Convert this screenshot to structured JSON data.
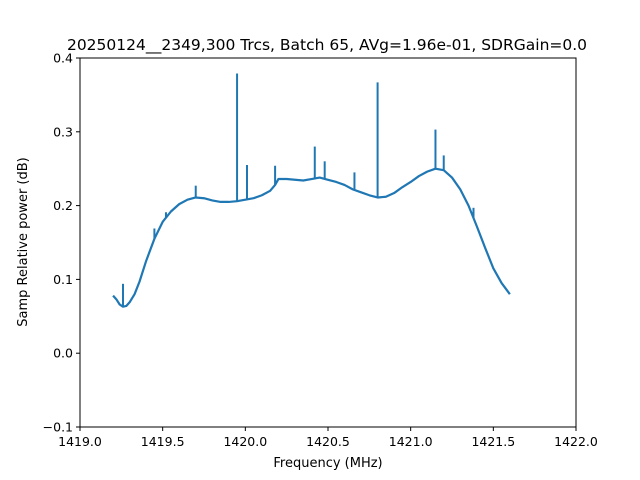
{
  "chart_data": {
    "type": "line",
    "title": "20250124__2349,300 Trcs, Batch 65, AVg=1.96e-01, SDRGain=0.0",
    "xlabel": "Frequency (MHz)",
    "ylabel": "Samp Relative power (dB)",
    "xlim": [
      1419.0,
      1422.0
    ],
    "ylim": [
      -0.1,
      0.4
    ],
    "xticks": [
      "1419.0",
      "1419.5",
      "1420.0",
      "1420.5",
      "1421.0",
      "1421.5",
      "1422.0"
    ],
    "yticks": [
      "−0.1",
      "0.0",
      "0.1",
      "0.2",
      "0.3",
      "0.4"
    ],
    "grid": false,
    "line_color": "#1f77b4",
    "series": [
      {
        "x": [
          1419.2,
          1419.22,
          1419.24,
          1419.26,
          1419.28,
          1419.3,
          1419.33,
          1419.36,
          1419.4,
          1419.45,
          1419.5,
          1419.55,
          1419.6,
          1419.65,
          1419.7,
          1419.75,
          1419.8,
          1419.85,
          1419.9,
          1419.95,
          1420.0,
          1420.05,
          1420.1,
          1420.15,
          1420.18,
          1420.2,
          1420.25,
          1420.3,
          1420.35,
          1420.4,
          1420.45,
          1420.5,
          1420.55,
          1420.6,
          1420.65,
          1420.7,
          1420.75,
          1420.8,
          1420.85,
          1420.9,
          1420.95,
          1421.0,
          1421.05,
          1421.1,
          1421.15,
          1421.2,
          1421.25,
          1421.3,
          1421.35,
          1421.4,
          1421.45,
          1421.5,
          1421.55,
          1421.6
        ],
        "y": [
          0.078,
          0.073,
          0.066,
          0.063,
          0.064,
          0.069,
          0.08,
          0.097,
          0.125,
          0.155,
          0.178,
          0.192,
          0.202,
          0.208,
          0.211,
          0.21,
          0.207,
          0.205,
          0.205,
          0.206,
          0.208,
          0.21,
          0.214,
          0.22,
          0.228,
          0.236,
          0.236,
          0.235,
          0.234,
          0.236,
          0.238,
          0.235,
          0.232,
          0.228,
          0.222,
          0.218,
          0.214,
          0.211,
          0.212,
          0.217,
          0.225,
          0.232,
          0.24,
          0.246,
          0.25,
          0.248,
          0.238,
          0.222,
          0.2,
          0.172,
          0.143,
          0.115,
          0.095,
          0.08
        ]
      }
    ],
    "spikes": [
      {
        "x": 1419.26,
        "y": 0.094
      },
      {
        "x": 1419.45,
        "y": 0.169
      },
      {
        "x": 1419.52,
        "y": 0.191
      },
      {
        "x": 1419.7,
        "y": 0.227
      },
      {
        "x": 1419.95,
        "y": 0.379
      },
      {
        "x": 1420.01,
        "y": 0.255
      },
      {
        "x": 1420.18,
        "y": 0.254
      },
      {
        "x": 1420.42,
        "y": 0.28
      },
      {
        "x": 1420.48,
        "y": 0.26
      },
      {
        "x": 1420.66,
        "y": 0.245
      },
      {
        "x": 1420.8,
        "y": 0.367
      },
      {
        "x": 1421.15,
        "y": 0.303
      },
      {
        "x": 1421.2,
        "y": 0.268
      },
      {
        "x": 1421.38,
        "y": 0.197
      }
    ]
  }
}
